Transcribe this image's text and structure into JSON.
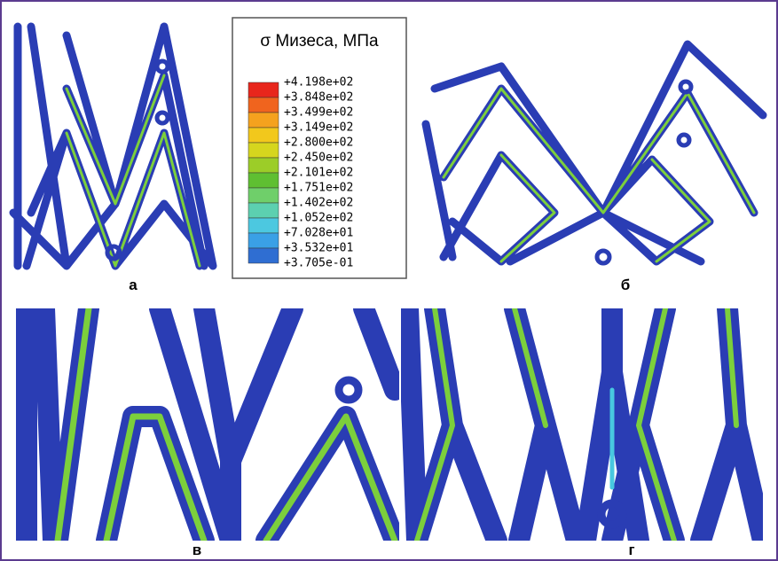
{
  "legend": {
    "title": "σ Мизеса, МПа",
    "labels": [
      "+4.198e+02",
      "+3.848e+02",
      "+3.499e+02",
      "+3.149e+02",
      "+2.800e+02",
      "+2.450e+02",
      "+2.101e+02",
      "+1.751e+02",
      "+1.402e+02",
      "+1.052e+02",
      "+7.028e+01",
      "+3.532e+01",
      "+3.705e-01"
    ],
    "colors": [
      "#e8261c",
      "#f0641e",
      "#f5a21e",
      "#f2c81c",
      "#d6d61e",
      "#9ccd28",
      "#5fbf32",
      "#6fcf6a",
      "#5cd0b0",
      "#4cc8e0",
      "#3aa0e6",
      "#2f6ed2"
    ]
  },
  "panels": [
    {
      "label": "а"
    },
    {
      "label": "б"
    },
    {
      "label": "в"
    },
    {
      "label": "г"
    }
  ]
}
